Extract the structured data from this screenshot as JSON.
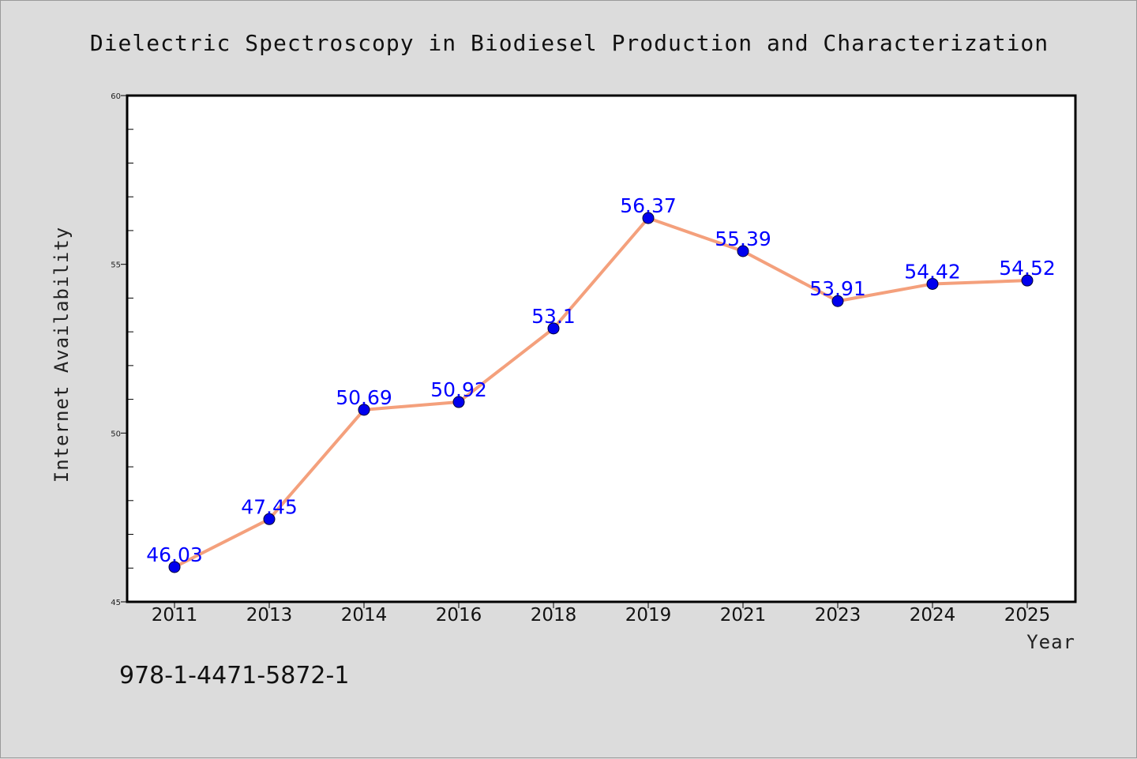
{
  "chart_data": {
    "type": "line",
    "title": "Dielectric Spectroscopy in Biodiesel Production and Characterization",
    "xlabel": "Year",
    "ylabel": "Internet Availability",
    "categories": [
      "2011",
      "2013",
      "2014",
      "2016",
      "2018",
      "2019",
      "2021",
      "2023",
      "2024",
      "2025"
    ],
    "series": [
      {
        "values": [
          46.03,
          47.45,
          50.69,
          50.92,
          53.1,
          56.37,
          55.39,
          53.91,
          54.42,
          54.52
        ],
        "value_labels": [
          "46.03",
          "47.45",
          "50.69",
          "50.92",
          "53.1",
          "56.37",
          "55.39",
          "53.91",
          "54.42",
          "54.52"
        ],
        "line_color": "#f4a07c",
        "marker_color": "#0000ee",
        "label_color": "#0000ff"
      }
    ],
    "ylim": [
      45,
      60
    ],
    "yticks": [
      "45",
      "50",
      "55",
      "60"
    ],
    "grid": false,
    "legend": "none"
  },
  "footnote": "978-1-4471-5872-1",
  "colors": {
    "background": "#dcdcdc",
    "plot_background": "#ffffff",
    "axes": "#000000"
  }
}
